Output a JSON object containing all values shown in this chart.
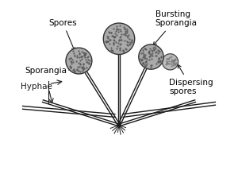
{
  "bg_color": "#ffffff",
  "line_color": "#1a1a1a",
  "sporangia_fill": "#aaaaaa",
  "sporangia_edge": "#333333",
  "dot_color": "#555555",
  "dispersing_fill": "#bbbbbb",
  "labels": {
    "spores": "Spores",
    "sporangia": "Sporangia",
    "hyphae": "Hyphae",
    "bursting": "Bursting\nSporangia",
    "dispersing": "Dispersing\nspores"
  },
  "label_fontsize": 7.5,
  "figsize": [
    3.0,
    2.29
  ],
  "dpi": 100,
  "xlim": [
    0,
    10
  ],
  "ylim": [
    0,
    9
  ]
}
